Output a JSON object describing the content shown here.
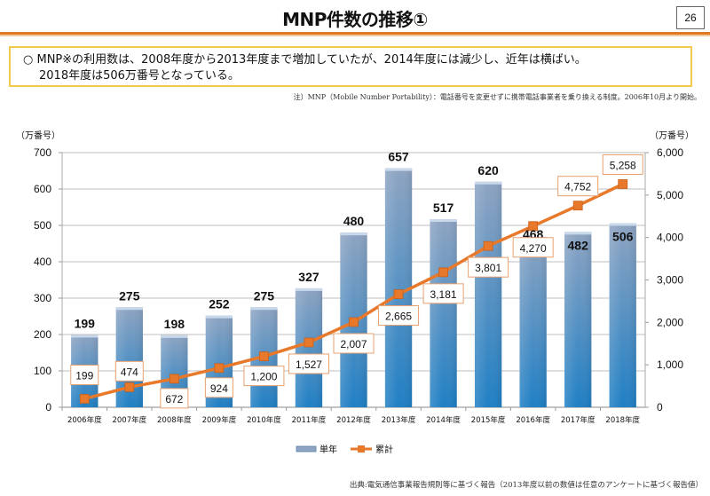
{
  "header": {
    "title": "MNP件数の推移①",
    "page_number": "26"
  },
  "summary": {
    "line1": "○ MNP※の利用数は、2008年度から2013年度まで増加していたが、2014年度には減少し、近年は横ばい。",
    "line2": "2018年度は506万番号となっている。"
  },
  "note": "注）MNP（Mobile Number Portability）：電話番号を変更せずに携帯電話事業者を乗り換える制度。2006年10月より開始。",
  "source": "出典:電気通信事業報告規則等に基づく報告（2013年度以前の数値は任意のアンケートに基づく報告値）",
  "colors": {
    "bar_top": "#8ea4c2",
    "bar_bottom": "#1f7fc4",
    "line": "#e8792a",
    "marker": "#e8792a",
    "grid": "#bfbfbf",
    "header_rule": "#e07a22",
    "summary_border": "#f2c94c"
  },
  "chart_data": {
    "type": "bar",
    "title": "",
    "categories": [
      "2006年度",
      "2007年度",
      "2008年度",
      "2009年度",
      "2010年度",
      "2011年度",
      "2012年度",
      "2013年度",
      "2014年度",
      "2015年度",
      "2016年度",
      "2017年度",
      "2018年度"
    ],
    "series": [
      {
        "name": "単年",
        "type": "bar",
        "axis": "left",
        "values": [
          199,
          275,
          198,
          252,
          275,
          327,
          480,
          657,
          517,
          620,
          468,
          482,
          506
        ],
        "labels": [
          "199",
          "275",
          "198",
          "252",
          "275",
          "327",
          "480",
          "657",
          "517",
          "620",
          "468",
          "482",
          "506"
        ]
      },
      {
        "name": "累計",
        "type": "line",
        "axis": "right",
        "values": [
          199,
          474,
          672,
          924,
          1200,
          1527,
          2007,
          2665,
          3181,
          3801,
          4270,
          4752,
          5258
        ],
        "labels": [
          "199",
          "474",
          "672",
          "924",
          "1,200",
          "1,527",
          "2,007",
          "2,665",
          "3,181",
          "3,801",
          "4,270",
          "4,752",
          "5,258"
        ]
      }
    ],
    "ylabel_left": "（万番号）",
    "ylabel_right": "（万番号）",
    "ylim_left": [
      0,
      700
    ],
    "ylim_right": [
      0,
      6000
    ],
    "yticks_left": [
      "0",
      "100",
      "200",
      "300",
      "400",
      "500",
      "600",
      "700"
    ],
    "yticks_right": [
      "0",
      "1,000",
      "2,000",
      "3,000",
      "4,000",
      "5,000",
      "6,000"
    ],
    "grid": true,
    "legend": {
      "placement": "bottom",
      "entries": [
        "単年",
        "累計"
      ]
    }
  }
}
